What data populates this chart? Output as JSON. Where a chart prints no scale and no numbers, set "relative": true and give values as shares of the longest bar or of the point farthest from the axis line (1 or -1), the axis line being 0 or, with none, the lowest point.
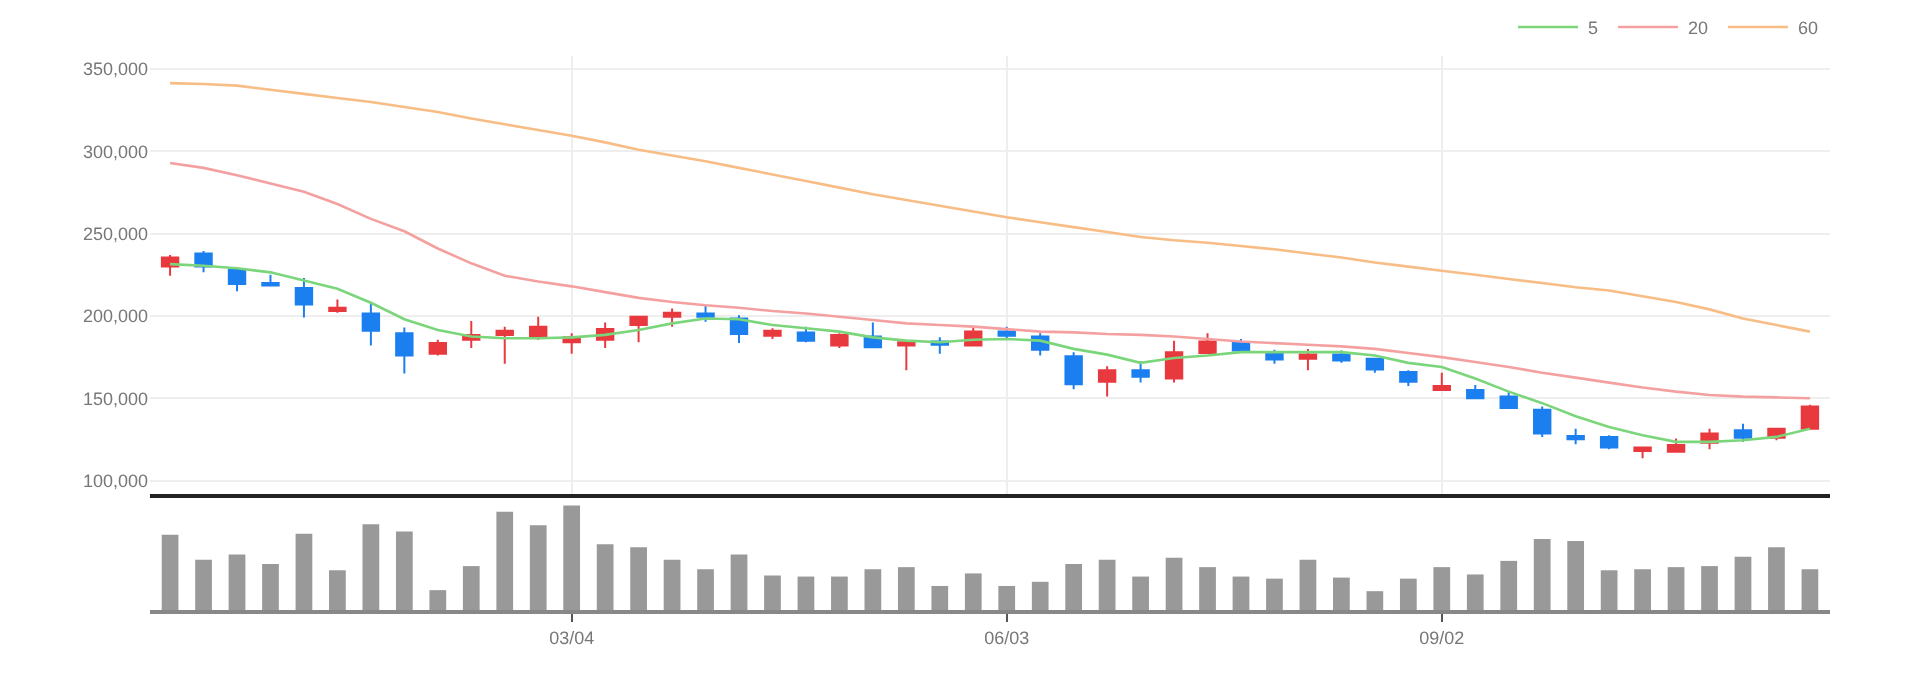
{
  "chart_data": [
    {
      "type": "candlestick",
      "categories": [
        null,
        null,
        null,
        null,
        null,
        null,
        null,
        null,
        null,
        null,
        null,
        null,
        null,
        null,
        null,
        null,
        null,
        null,
        null,
        null,
        null,
        null,
        null,
        null,
        null,
        null,
        null,
        null,
        null,
        null,
        null,
        null,
        null,
        null,
        null,
        null,
        null,
        null,
        null,
        null,
        null,
        null,
        null,
        null,
        null,
        null,
        null,
        null,
        null,
        null
      ],
      "ohlc": [
        [
          230000,
          237000,
          224500,
          235500
        ],
        [
          238000,
          239500,
          226500,
          230000
        ],
        [
          228000,
          229000,
          215000,
          219500
        ],
        [
          220000,
          225000,
          218500,
          218500
        ],
        [
          217000,
          223000,
          199000,
          207000
        ],
        [
          203000,
          210000,
          202000,
          205000
        ],
        [
          201500,
          207500,
          182000,
          191000
        ],
        [
          189500,
          193000,
          165000,
          176000
        ],
        [
          177000,
          185500,
          176000,
          183500
        ],
        [
          185500,
          197000,
          180500,
          188500
        ],
        [
          188500,
          193500,
          171000,
          191000
        ],
        [
          187500,
          199500,
          185500,
          193500
        ],
        [
          184000,
          189500,
          177000,
          187000
        ],
        [
          185500,
          196000,
          180500,
          192000
        ],
        [
          194500,
          199500,
          184000,
          199500
        ],
        [
          199500,
          204500,
          193500,
          202000
        ],
        [
          201500,
          206500,
          196500,
          199500
        ],
        [
          198500,
          200500,
          183500,
          189000
        ],
        [
          188000,
          192500,
          186000,
          191000
        ],
        [
          190000,
          193500,
          184000,
          185000
        ],
        [
          182000,
          189500,
          180500,
          188500
        ],
        [
          187500,
          196000,
          181000,
          181000
        ],
        [
          182000,
          184000,
          167000,
          184000
        ],
        [
          184500,
          187000,
          177000,
          182500
        ],
        [
          182000,
          193500,
          182000,
          190500
        ],
        [
          190500,
          193500,
          186000,
          188000
        ],
        [
          187500,
          189500,
          176000,
          179500
        ],
        [
          175500,
          178000,
          155500,
          158500
        ],
        [
          160000,
          169500,
          151000,
          167000
        ],
        [
          167000,
          172500,
          159500,
          163000
        ],
        [
          162000,
          185000,
          159500,
          178000
        ],
        [
          177500,
          189500,
          177500,
          184500
        ],
        [
          184000,
          186000,
          178500,
          179000
        ],
        [
          178000,
          179500,
          171000,
          173500
        ],
        [
          174000,
          180000,
          167000,
          176500
        ],
        [
          176500,
          179000,
          171500,
          173000
        ],
        [
          174000,
          174500,
          165500,
          167500
        ],
        [
          166000,
          167000,
          157500,
          160000
        ],
        [
          155000,
          165500,
          155000,
          157500
        ],
        [
          155000,
          158000,
          150000,
          150000
        ],
        [
          151000,
          154000,
          143500,
          144000
        ],
        [
          143000,
          145000,
          126500,
          128500
        ],
        [
          127000,
          131500,
          122000,
          125000
        ],
        [
          126500,
          127500,
          119000,
          120000
        ],
        [
          118000,
          120000,
          113500,
          120000
        ],
        [
          117500,
          125500,
          117000,
          121500
        ],
        [
          123000,
          131500,
          119000,
          128500
        ],
        [
          130500,
          134500,
          123500,
          126000
        ],
        [
          126000,
          131500,
          124500,
          131500
        ],
        [
          131500,
          146000,
          131000,
          145000
        ]
      ],
      "colors": [
        "#e8393f",
        "#1b7ff0",
        "#1b7ff0",
        "#1b7ff0",
        "#1b7ff0",
        "#e8393f",
        "#1b7ff0",
        "#1b7ff0",
        "#e8393f",
        "#e8393f",
        "#e8393f",
        "#e8393f",
        "#e8393f",
        "#e8393f",
        "#e8393f",
        "#e8393f",
        "#1b7ff0",
        "#1b7ff0",
        "#e8393f",
        "#1b7ff0",
        "#e8393f",
        "#1b7ff0",
        "#e8393f",
        "#1b7ff0",
        "#e8393f",
        "#1b7ff0",
        "#1b7ff0",
        "#1b7ff0",
        "#e8393f",
        "#1b7ff0",
        "#e8393f",
        "#e8393f",
        "#1b7ff0",
        "#1b7ff0",
        "#e8393f",
        "#1b7ff0",
        "#1b7ff0",
        "#1b7ff0",
        "#e8393f",
        "#1b7ff0",
        "#1b7ff0",
        "#1b7ff0",
        "#1b7ff0",
        "#1b7ff0",
        "#e8393f",
        "#e8393f",
        "#e8393f",
        "#1b7ff0",
        "#e8393f",
        "#e8393f"
      ],
      "series": [
        {
          "type": "line",
          "name": "5",
          "color": "#7bd67b",
          "values": [
            231500,
            230500,
            229000,
            226500,
            221500,
            216500,
            208000,
            198000,
            191500,
            187500,
            186500,
            186500,
            187000,
            188500,
            191500,
            195500,
            198500,
            198000,
            194500,
            192500,
            190500,
            187000,
            185000,
            184000,
            185500,
            186000,
            185000,
            180000,
            176500,
            171500,
            174500,
            176000,
            178000,
            178000,
            178000,
            178000,
            176000,
            171500,
            169000,
            162000,
            154000,
            147000,
            139000,
            132500,
            127500,
            123500,
            123500,
            124500,
            126500,
            131500
          ]
        },
        {
          "type": "line",
          "name": "20",
          "color": "#f5a0a0",
          "values": [
            293000,
            290000,
            285500,
            280500,
            275500,
            268000,
            259000,
            251500,
            241000,
            232000,
            224500,
            221000,
            218000,
            214500,
            211000,
            208500,
            206500,
            205000,
            203000,
            201500,
            199500,
            197500,
            195500,
            194500,
            193500,
            192000,
            190500,
            190000,
            189000,
            188500,
            187500,
            186000,
            184500,
            183500,
            182500,
            181500,
            180000,
            177500,
            175000,
            172000,
            169000,
            165500,
            162500,
            159500,
            156500,
            154000,
            152000,
            151000,
            150500,
            150000
          ]
        },
        {
          "type": "line",
          "name": "60",
          "color": "#f7bd85",
          "values": [
            341500,
            341000,
            340000,
            337500,
            335000,
            332500,
            330000,
            327000,
            324000,
            320000,
            316500,
            313000,
            309500,
            305500,
            301000,
            297500,
            294000,
            290000,
            286000,
            282000,
            278000,
            274000,
            270500,
            267000,
            263500,
            260000,
            257000,
            254000,
            251000,
            248000,
            246000,
            244500,
            242500,
            240500,
            238000,
            235500,
            232500,
            230000,
            227500,
            225000,
            222500,
            220000,
            217500,
            215500,
            212000,
            208500,
            204000,
            198500,
            194500,
            190500
          ]
        }
      ],
      "ylim": [
        92000,
        358000
      ],
      "yticks": [
        {
          "value": 100000,
          "label": "100,000"
        },
        {
          "value": 150000,
          "label": "150,000"
        },
        {
          "value": 200000,
          "label": "200,000"
        },
        {
          "value": 250000,
          "label": "250,000"
        },
        {
          "value": 300000,
          "label": "300,000"
        },
        {
          "value": 350000,
          "label": "350,000"
        }
      ],
      "grid": true,
      "legend": "top right",
      "tick_labels": "y"
    },
    {
      "type": "bar",
      "relative": true,
      "color": "#999999",
      "tick_labels": "x",
      "categories": [
        null,
        null,
        null,
        null,
        null,
        null,
        null,
        null,
        null,
        null,
        null,
        null,
        "03/04",
        null,
        null,
        null,
        null,
        null,
        null,
        null,
        null,
        null,
        null,
        null,
        null,
        "06/03",
        null,
        null,
        null,
        null,
        null,
        null,
        null,
        null,
        null,
        null,
        null,
        null,
        "09/02",
        null,
        null,
        null,
        null,
        null,
        null,
        null,
        null,
        null,
        null,
        null
      ],
      "values": [
        0.72,
        0.48,
        0.53,
        0.44,
        0.73,
        0.38,
        0.82,
        0.75,
        0.19,
        0.42,
        0.94,
        0.81,
        1,
        0.63,
        0.6,
        0.48,
        0.39,
        0.53,
        0.33,
        0.32,
        0.32,
        0.39,
        0.41,
        0.23,
        0.35,
        0.23,
        0.27,
        0.44,
        0.48,
        0.32,
        0.5,
        0.41,
        0.32,
        0.3,
        0.48,
        0.31,
        0.18,
        0.3,
        0.41,
        0.34,
        0.47,
        0.68,
        0.66,
        0.38,
        0.39,
        0.41,
        0.42,
        0.51,
        0.6,
        0.39
      ]
    }
  ]
}
